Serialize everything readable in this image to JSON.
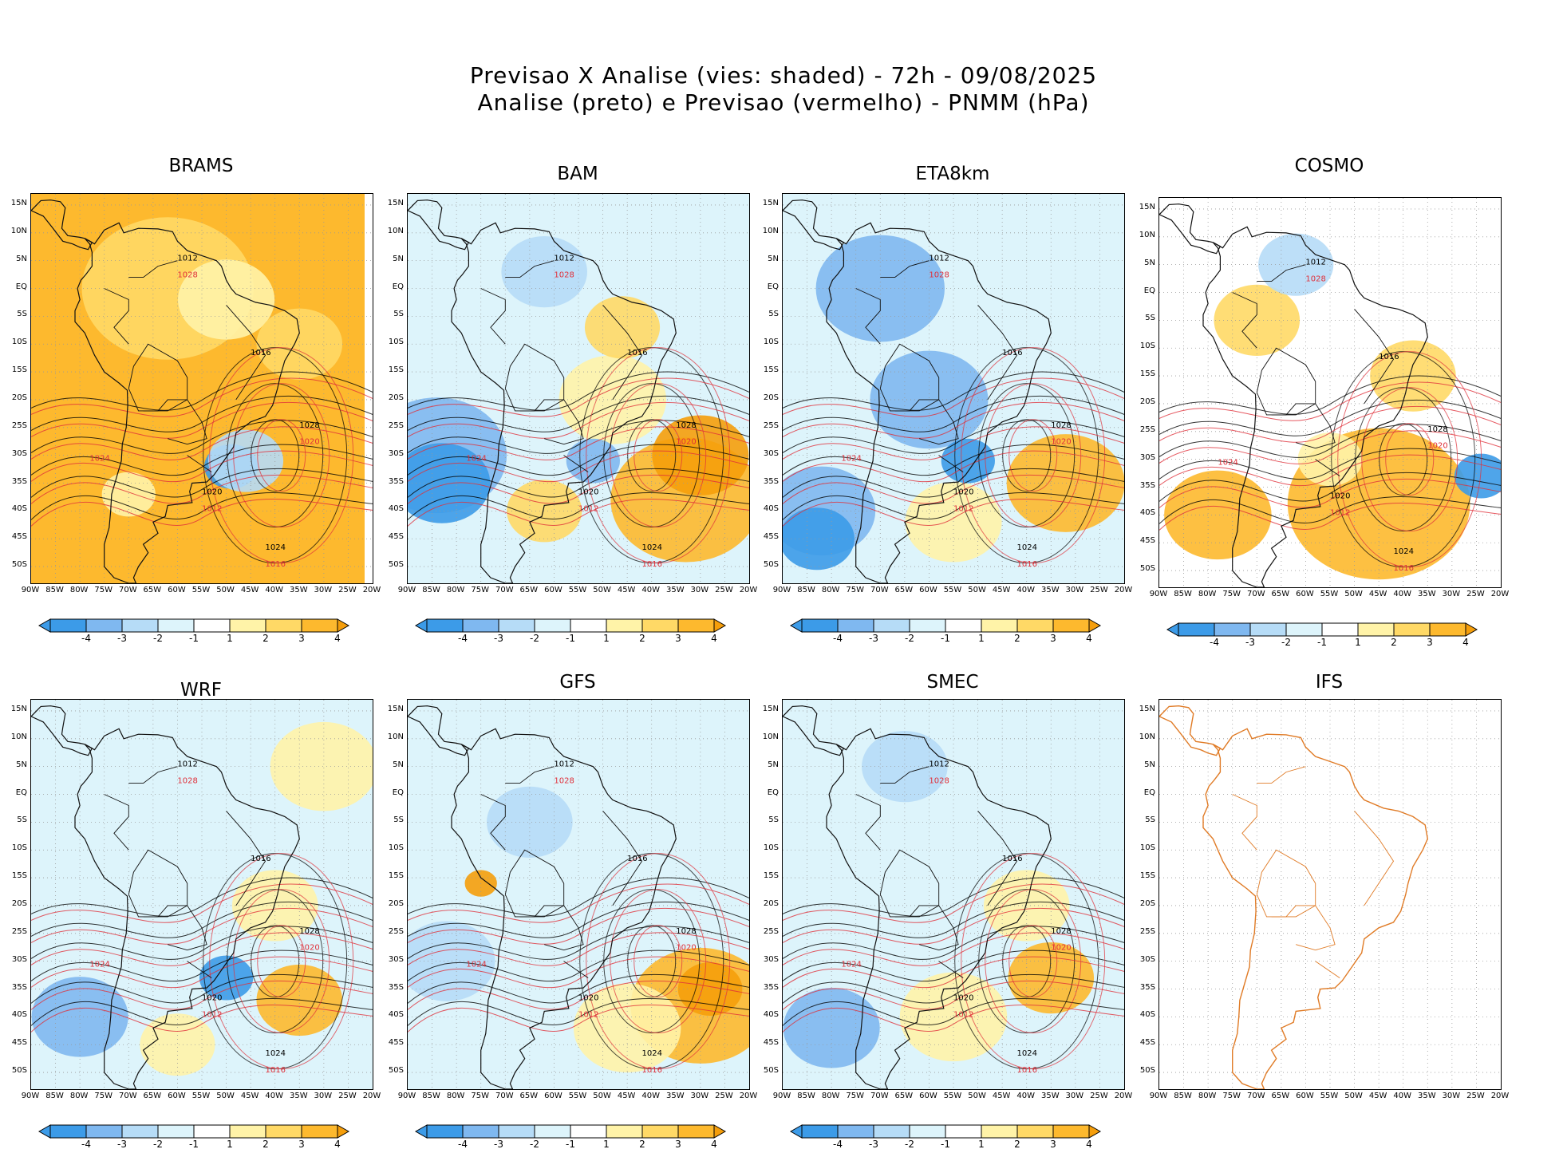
{
  "title_line1": "Previsao X Analise (vies: shaded) - 72h - 09/08/2025",
  "title_line2": "Analise (preto) e Previsao (vermelho) - PNMM (hPa)",
  "lat_labels": [
    "15N",
    "10N",
    "5N",
    "EQ",
    "5S",
    "10S",
    "15S",
    "20S",
    "25S",
    "30S",
    "35S",
    "40S",
    "45S",
    "50S"
  ],
  "lon_labels": [
    "90W",
    "85W",
    "80W",
    "75W",
    "70W",
    "65W",
    "60W",
    "55W",
    "50W",
    "45W",
    "40W",
    "35W",
    "30W",
    "25W",
    "20W"
  ],
  "colorbar": {
    "labels": [
      "-4",
      "-3",
      "-2",
      "-1",
      "1",
      "2",
      "3",
      "4"
    ],
    "colors": [
      "#3c9be8",
      "#7fb8f0",
      "#b6dcf7",
      "#ddf4fb",
      "#ffffff",
      "#fff3a8",
      "#ffd966",
      "#fdb92e",
      "#f59e0b"
    ]
  },
  "panels": [
    {
      "name": "BRAMS",
      "contour_labels": [
        "1012",
        "1016",
        "1020",
        "1024",
        "1028"
      ]
    },
    {
      "name": "BAM",
      "contour_labels": [
        "1012",
        "1016",
        "1020",
        "1024",
        "1028"
      ]
    },
    {
      "name": "ETA8km",
      "contour_labels": [
        "1012",
        "1016",
        "1020",
        "1024",
        "1028"
      ]
    },
    {
      "name": "COSMO",
      "contour_labels": [
        "1012",
        "1016",
        "1020",
        "1024",
        "1028"
      ]
    },
    {
      "name": "WRF",
      "contour_labels": [
        "1012",
        "1016",
        "1020",
        "1024",
        "1028"
      ]
    },
    {
      "name": "GFS",
      "contour_labels": [
        "1012",
        "1016",
        "1020",
        "1024",
        "1028"
      ]
    },
    {
      "name": "SMEC",
      "contour_labels": [
        "1012",
        "1016",
        "1020",
        "1024",
        "1028"
      ]
    },
    {
      "name": "IFS",
      "contour_labels": []
    }
  ],
  "icons": {
    "map": "south-america-map-icon"
  }
}
